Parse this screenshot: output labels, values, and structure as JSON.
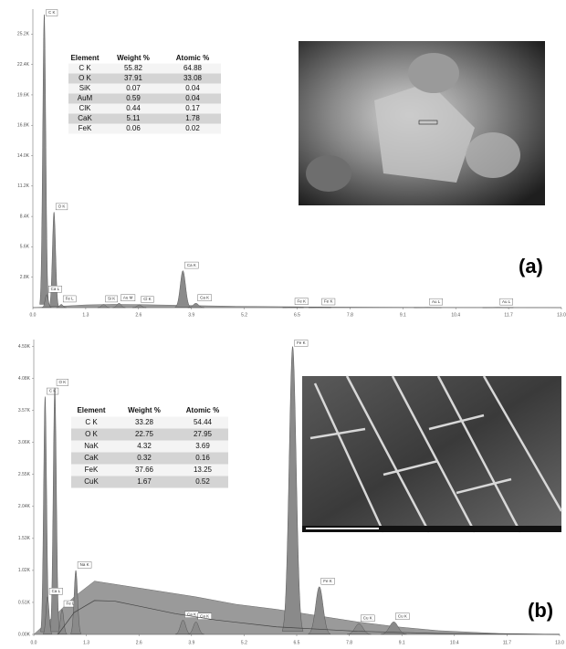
{
  "chart_data": [
    {
      "type": "spectrum",
      "panel_label": "(a)",
      "xlim": [
        0,
        13
      ],
      "xticks": [
        {
          "value": 0,
          "label": "0.0"
        },
        1.3,
        2.6,
        3.9,
        5.2,
        6.5,
        7.8,
        9.1,
        10.4,
        11.7,
        {
          "value": 13,
          "label": "13.0"
        }
      ],
      "ylim": [
        0,
        27500
      ],
      "yticks": [
        {
          "value": 2800,
          "label": "2.8K"
        },
        {
          "value": 5600,
          "label": "5.6K"
        },
        {
          "value": 8400,
          "label": "8.4K"
        },
        {
          "value": 11200,
          "label": "11.2K"
        },
        {
          "value": 14000,
          "label": "14.0K"
        },
        {
          "value": 16800,
          "label": "16.8K"
        },
        {
          "value": 19600,
          "label": "19.6K"
        },
        {
          "value": 22400,
          "label": "22.4K"
        },
        {
          "value": 25200,
          "label": "25.2K"
        }
      ],
      "color": "#8a8a8a",
      "peaks": {
        "labels": [
          "C K",
          "O K",
          "Ca L",
          "Fe L",
          "Si K",
          "Au M",
          "Cl K",
          "Ca K",
          "Ca K",
          "Fe K",
          "Fe K",
          "Au L",
          "Au L"
        ],
        "x": [
          0.28,
          0.52,
          0.34,
          0.7,
          1.74,
          2.12,
          2.62,
          3.69,
          4.01,
          6.4,
          7.06,
          9.71,
          11.44
        ],
        "values": [
          27000,
          8800,
          1200,
          300,
          300,
          400,
          250,
          3400,
          400,
          60,
          40,
          30,
          30
        ]
      },
      "background": {
        "x": [
          0,
          0.8,
          1.3,
          2.0,
          2.6,
          3.5,
          5,
          7,
          10,
          13
        ],
        "values": [
          0,
          150,
          250,
          300,
          280,
          220,
          120,
          60,
          20,
          0
        ]
      },
      "table": {
        "columns": [
          "Element",
          "Weight %",
          "Atomic %"
        ],
        "rows": [
          [
            "C K",
            55.82,
            64.88
          ],
          [
            "O K",
            37.91,
            33.08
          ],
          [
            "SiK",
            0.07,
            0.04
          ],
          [
            "AuM",
            0.59,
            0.04
          ],
          [
            "ClK",
            0.44,
            0.17
          ],
          [
            "CaK",
            5.11,
            1.78
          ],
          [
            "FeK",
            0.06,
            0.02
          ]
        ]
      }
    },
    {
      "type": "spectrum",
      "panel_label": "(b)",
      "xlim": [
        0,
        13
      ],
      "xticks": [
        {
          "value": 0,
          "label": "0.0"
        },
        1.3,
        2.6,
        3.9,
        5.2,
        6.5,
        7.8,
        9.1,
        10.4,
        11.7,
        {
          "value": 13,
          "label": "13.0"
        }
      ],
      "ylim": [
        0,
        4700
      ],
      "yticks": [
        {
          "value": 0,
          "label": "0.00K"
        },
        {
          "value": 510,
          "label": "0.51K"
        },
        {
          "value": 1020,
          "label": "1.02K"
        },
        {
          "value": 1530,
          "label": "1.53K"
        },
        {
          "value": 2040,
          "label": "2.04K"
        },
        {
          "value": 2550,
          "label": "2.55K"
        },
        {
          "value": 3060,
          "label": "3.06K"
        },
        {
          "value": 3570,
          "label": "3.57K"
        },
        {
          "value": 4080,
          "label": "4.08K"
        },
        {
          "value": 4590,
          "label": "4.59K"
        }
      ],
      "color": "#8a8a8a",
      "peaks": {
        "labels": [
          "C K",
          "O K",
          "Ca L",
          "Fe L",
          "Na K",
          "Ca K",
          "Ca K",
          "Fe K",
          "Fe K",
          "Cu K",
          "Cu K"
        ],
        "x": [
          0.28,
          0.52,
          0.34,
          0.7,
          1.04,
          3.69,
          4.01,
          6.4,
          7.06,
          8.04,
          8.9
        ],
        "values": [
          3790,
          3930,
          600,
          400,
          1020,
          230,
          200,
          4590,
          760,
          170,
          200
        ]
      },
      "background": {
        "x": [
          0,
          0.6,
          1.0,
          1.5,
          2.0,
          3.0,
          4.0,
          5.0,
          6.0,
          7.0,
          8.0,
          9.0,
          10.0,
          11.5,
          13
        ],
        "values": [
          0,
          350,
          600,
          850,
          800,
          700,
          600,
          480,
          400,
          300,
          200,
          120,
          60,
          15,
          0
        ]
      },
      "fit_line": {
        "x": [
          0.6,
          1.0,
          1.5,
          2.0,
          2.6,
          3.5,
          4.5,
          6,
          8,
          10,
          13
        ],
        "values": [
          0,
          350,
          540,
          530,
          450,
          330,
          230,
          120,
          50,
          15,
          0
        ]
      },
      "table": {
        "columns": [
          "Element",
          "Weight %",
          "Atomic %"
        ],
        "rows": [
          [
            "C K",
            33.28,
            54.44
          ],
          [
            "O K",
            22.75,
            27.95
          ],
          [
            "NaK",
            4.32,
            3.69
          ],
          [
            "CaK",
            0.32,
            0.16
          ],
          [
            "FeK",
            37.66,
            13.25
          ],
          [
            "CuK",
            1.67,
            0.52
          ]
        ]
      }
    }
  ]
}
